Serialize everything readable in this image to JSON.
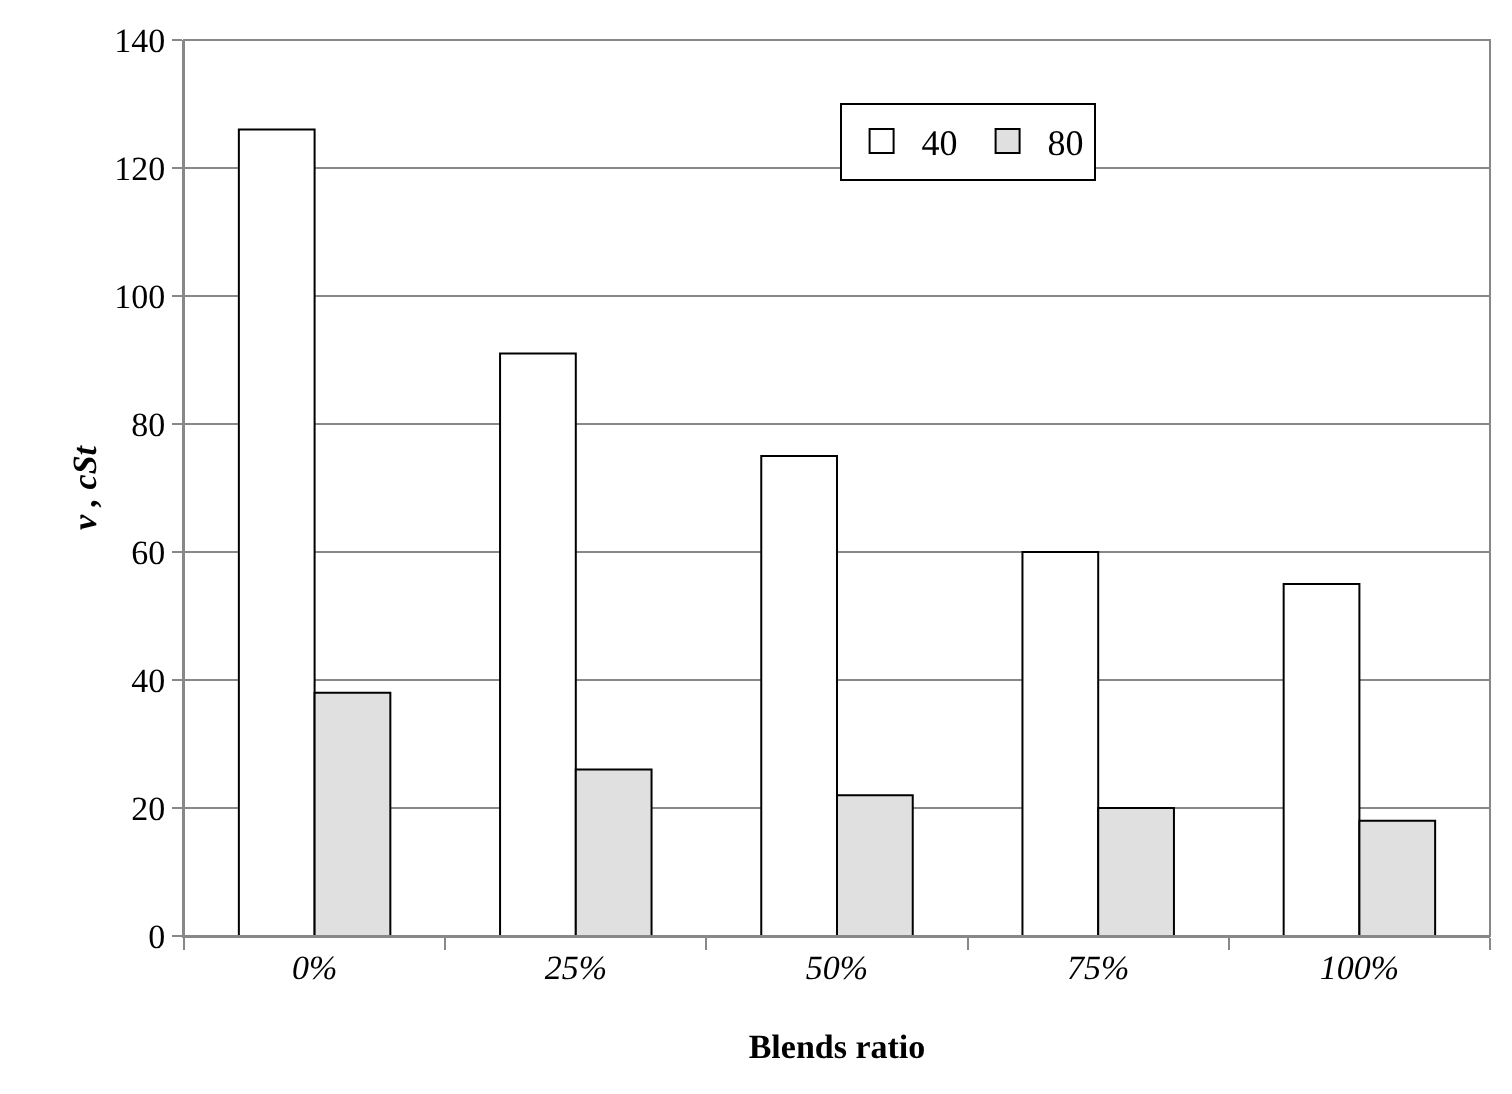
{
  "chart_data": {
    "type": "bar",
    "xlabel": "Blends ratio",
    "ylabel": "v , cSt",
    "categories": [
      "0%",
      "25%",
      "50%",
      "75%",
      "100%"
    ],
    "series": [
      {
        "name": "40",
        "color": "#ffffff",
        "values": [
          126,
          91,
          75,
          60,
          55
        ]
      },
      {
        "name": "80",
        "color": "#e0e0e0",
        "values": [
          38,
          26,
          22,
          20,
          18
        ]
      }
    ],
    "ylim": [
      0,
      140
    ],
    "yticks": [
      0,
      20,
      40,
      60,
      80,
      100,
      120,
      140
    ],
    "grid": "y",
    "legend": "top"
  }
}
